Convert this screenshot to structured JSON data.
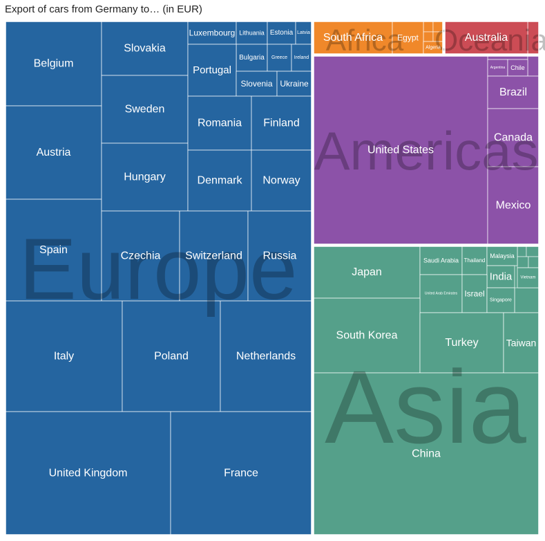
{
  "chart_data": {
    "type": "treemap",
    "title": "Export of cars from Germany to… (in EUR)",
    "colors": {
      "Europe": "#2565a0",
      "Africa": "#f0882a",
      "Oceania": "#cc4c55",
      "Americas": "#8c52a8",
      "Asia": "#55a08a",
      "border": "#ffffff"
    },
    "groups": [
      {
        "name": "Europe",
        "leaves": [
          {
            "name": "Belgium",
            "value": 16.9
          },
          {
            "name": "Austria",
            "value": 18.8
          },
          {
            "name": "Spain",
            "value": 20.2
          },
          {
            "name": "Slovakia",
            "value": 9.6
          },
          {
            "name": "Sweden",
            "value": 12.3
          },
          {
            "name": "Hungary",
            "value": 12.2
          },
          {
            "name": "Luxembourg",
            "value": 1.3
          },
          {
            "name": "Lithuania",
            "value": 1.0
          },
          {
            "name": "Estonia",
            "value": 0.9
          },
          {
            "name": "Latvia",
            "value": 0.6
          },
          {
            "name": "Bulgaria",
            "value": 1.0
          },
          {
            "name": "Greece",
            "value": 0.8
          },
          {
            "name": "Ireland",
            "value": 0.6
          },
          {
            "name": "Portugal",
            "value": 3.2
          },
          {
            "name": "Slovenia",
            "value": 1.3
          },
          {
            "name": "Ukraine",
            "value": 1.0
          },
          {
            "name": "Romania",
            "value": 6.9
          },
          {
            "name": "Finland",
            "value": 6.2
          },
          {
            "name": "Denmark",
            "value": 8.0
          },
          {
            "name": "Norway",
            "value": 7.5
          },
          {
            "name": "Czechia",
            "value": 16.9
          },
          {
            "name": "Switzerland",
            "value": 14.3
          },
          {
            "name": "Russia",
            "value": 12.9
          },
          {
            "name": "Italy",
            "value": 27.2
          },
          {
            "name": "Poland",
            "value": 22.8
          },
          {
            "name": "Netherlands",
            "value": 21.1
          },
          {
            "name": "United Kingdom",
            "value": 42.7
          },
          {
            "name": "France",
            "value": 36.7
          }
        ]
      },
      {
        "name": "Africa",
        "leaves": [
          {
            "name": "South Africa",
            "value": 5.3
          },
          {
            "name": "Egypt",
            "value": 1.8
          },
          {
            "name": "Algeria",
            "value": 0.8
          }
        ]
      },
      {
        "name": "Oceania",
        "leaves": [
          {
            "name": "Australia",
            "value": 6.9
          }
        ]
      },
      {
        "name": "Americas",
        "leaves": [
          {
            "name": "United States",
            "value": 71.3
          },
          {
            "name": "Argentina",
            "value": 0.6
          },
          {
            "name": "Chile",
            "value": 0.9
          },
          {
            "name": "Brazil",
            "value": 4.6
          },
          {
            "name": "Canada",
            "value": 9.8
          },
          {
            "name": "Mexico",
            "value": 10.2
          }
        ]
      },
      {
        "name": "Asia",
        "leaves": [
          {
            "name": "Japan",
            "value": 14.2
          },
          {
            "name": "Saudi Arabia",
            "value": 3.6
          },
          {
            "name": "Thailand",
            "value": 2.0
          },
          {
            "name": "Malaysia",
            "value": 1.5
          },
          {
            "name": "India",
            "value": 2.0
          },
          {
            "name": "Vietnam",
            "value": 1.1
          },
          {
            "name": "United Arab Emirates",
            "value": 4.3
          },
          {
            "name": "Israel",
            "value": 2.4
          },
          {
            "name": "Singapore",
            "value": 1.4
          },
          {
            "name": "South Korea",
            "value": 20.0
          },
          {
            "name": "Turkey",
            "value": 11.9
          },
          {
            "name": "Taiwan",
            "value": 5.3
          },
          {
            "name": "China",
            "value": 90.0
          }
        ]
      }
    ]
  }
}
